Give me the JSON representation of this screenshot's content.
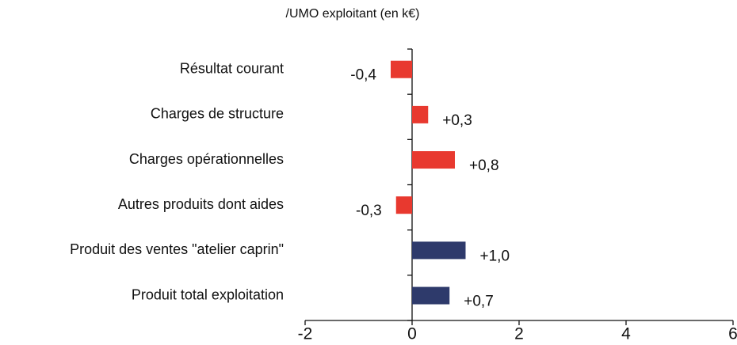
{
  "chart_data": {
    "type": "barh",
    "title": "/UMO exploitant (en k€)",
    "categories": [
      "Résultat courant",
      "Charges de structure",
      "Charges opérationnelles",
      "Autres produits dont aides",
      "Produit des ventes \"atelier caprin\"",
      "Produit total exploitation"
    ],
    "values": [
      -0.4,
      0.3,
      0.8,
      -0.3,
      1.0,
      0.7
    ],
    "value_labels": [
      "-0,4",
      "+0,3",
      "+0,8",
      "-0,3",
      "+1,0",
      "+0,7"
    ],
    "colors": [
      "#e8392f",
      "#e8392f",
      "#e8392f",
      "#e8392f",
      "#2e3a6b",
      "#2e3a6b"
    ],
    "xlim": [
      -2,
      6
    ],
    "xticks": [
      -2,
      0,
      2,
      4,
      6
    ],
    "grid": false
  }
}
